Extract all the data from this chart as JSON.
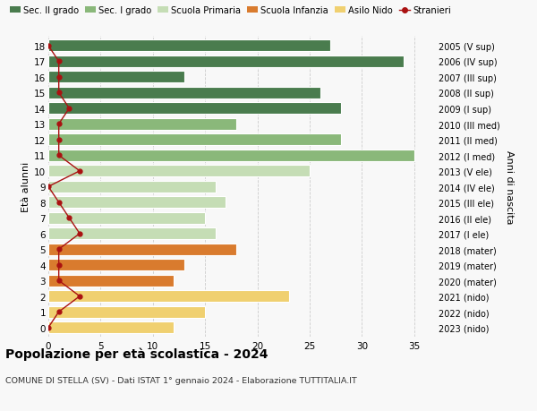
{
  "ages": [
    18,
    17,
    16,
    15,
    14,
    13,
    12,
    11,
    10,
    9,
    8,
    7,
    6,
    5,
    4,
    3,
    2,
    1,
    0
  ],
  "years": [
    "2005 (V sup)",
    "2006 (IV sup)",
    "2007 (III sup)",
    "2008 (II sup)",
    "2009 (I sup)",
    "2010 (III med)",
    "2011 (II med)",
    "2012 (I med)",
    "2013 (V ele)",
    "2014 (IV ele)",
    "2015 (III ele)",
    "2016 (II ele)",
    "2017 (I ele)",
    "2018 (mater)",
    "2019 (mater)",
    "2020 (mater)",
    "2021 (nido)",
    "2022 (nido)",
    "2023 (nido)"
  ],
  "values": [
    27,
    34,
    13,
    26,
    28,
    18,
    28,
    35,
    25,
    16,
    17,
    15,
    16,
    18,
    13,
    12,
    23,
    15,
    12
  ],
  "bar_colors": [
    "#4a7c4e",
    "#4a7c4e",
    "#4a7c4e",
    "#4a7c4e",
    "#4a7c4e",
    "#8ab87a",
    "#8ab87a",
    "#8ab87a",
    "#c5ddb5",
    "#c5ddb5",
    "#c5ddb5",
    "#c5ddb5",
    "#c5ddb5",
    "#d97b2e",
    "#d97b2e",
    "#d97b2e",
    "#f0d070",
    "#f0d070",
    "#f0d070"
  ],
  "stranieri_values": [
    0,
    1,
    1,
    1,
    2,
    1,
    1,
    1,
    3,
    0,
    1,
    2,
    3,
    1,
    1,
    1,
    3,
    1,
    0
  ],
  "legend_labels": [
    "Sec. II grado",
    "Sec. I grado",
    "Scuola Primaria",
    "Scuola Infanzia",
    "Asilo Nido",
    "Stranieri"
  ],
  "legend_colors": [
    "#4a7c4e",
    "#8ab87a",
    "#c5ddb5",
    "#d97b2e",
    "#f0d070",
    "#aa1111"
  ],
  "title": "Popolazione per età scolastica - 2024",
  "subtitle": "COMUNE DI STELLA (SV) - Dati ISTAT 1° gennaio 2024 - Elaborazione TUTTITALIA.IT",
  "ylabel_left": "Età alunni",
  "ylabel_right": "Anni di nascita",
  "xlim": [
    0,
    37
  ],
  "xticks": [
    0,
    5,
    10,
    15,
    20,
    25,
    30,
    35
  ],
  "bg_color": "#f8f8f8",
  "grid_color": "#cccccc"
}
